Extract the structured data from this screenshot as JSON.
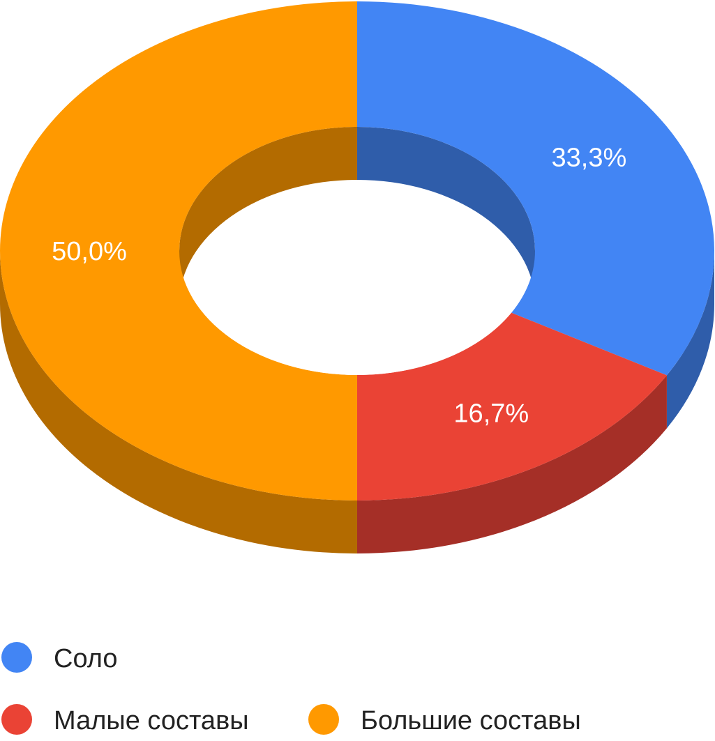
{
  "chart_data": {
    "type": "pie",
    "donut": true,
    "three_d": true,
    "slices": [
      {
        "label": "Соло",
        "value": 33.3,
        "value_label": "33,3%",
        "color": "#4285F4",
        "side_color": "#2F5DAA"
      },
      {
        "label": "Малые составы",
        "value": 16.7,
        "value_label": "16,7%",
        "color": "#EA4335",
        "side_color": "#A52F27"
      },
      {
        "label": "Большие составы",
        "value": 50.0,
        "value_label": "50,0%",
        "color": "#FF9900",
        "side_color": "#B36B00"
      }
    ],
    "legend": {
      "placement": "bottom",
      "items": [
        "Соло",
        "Малые составы",
        "Большие составы"
      ]
    }
  }
}
